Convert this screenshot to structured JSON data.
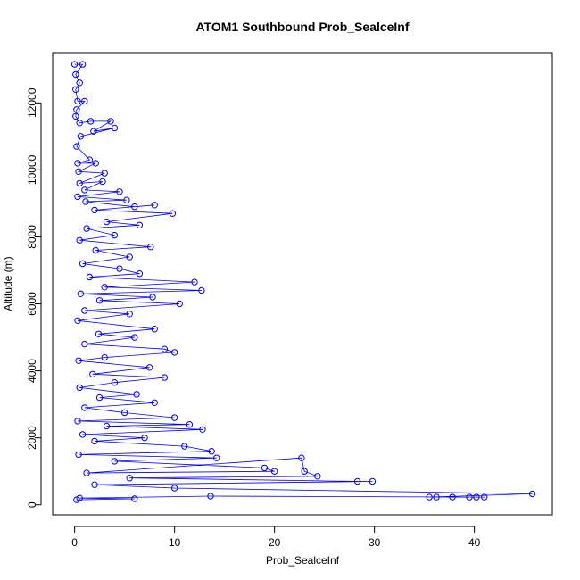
{
  "chart_data": {
    "type": "line",
    "title": "ATOM1 Southbound Prob_SealceInf",
    "xlabel": "Prob_SealceInf",
    "ylabel": "Altitude (m)",
    "xlim": [
      -2.2,
      47.8
    ],
    "ylim": [
      -300,
      13500
    ],
    "x_ticks": [
      0,
      10,
      20,
      30,
      40
    ],
    "x_tick_labels": [
      "0",
      "10",
      "20",
      "30",
      "40"
    ],
    "y_ticks": [
      0,
      2000,
      4000,
      6000,
      8000,
      10000,
      12000
    ],
    "y_tick_labels": [
      "0",
      "2000",
      "4000",
      "6000",
      "8000",
      "10000",
      "12000"
    ],
    "grid": false,
    "series_color": "#0000ff",
    "marker": "open-circle",
    "lines_connected": true,
    "series": [
      {
        "points": [
          [
            0,
            13150
          ],
          [
            0.8,
            13150
          ],
          [
            0.1,
            12850
          ],
          [
            0.5,
            12600
          ],
          [
            0.1,
            12400
          ],
          [
            0.3,
            12050
          ],
          [
            1.0,
            12050
          ],
          [
            0.2,
            11800
          ],
          [
            0.1,
            11600
          ],
          [
            0.5,
            11400
          ],
          [
            1.6,
            11450
          ],
          [
            3.6,
            11450
          ],
          [
            1.9,
            11150
          ],
          [
            4.0,
            11250
          ],
          [
            0.6,
            11000
          ],
          [
            0.2,
            10700
          ],
          [
            1.5,
            10300
          ],
          [
            0.3,
            10200
          ],
          [
            2.1,
            10200
          ],
          [
            0.4,
            9950
          ],
          [
            3.0,
            9900
          ],
          [
            0.5,
            9600
          ],
          [
            2.8,
            9650
          ],
          [
            1.0,
            9400
          ],
          [
            4.5,
            9350
          ],
          [
            0.3,
            9200
          ],
          [
            5.2,
            9100
          ],
          [
            1.1,
            9050
          ],
          [
            6.0,
            8900
          ],
          [
            8.0,
            8950
          ],
          [
            2.0,
            8800
          ],
          [
            9.8,
            8700
          ],
          [
            3.2,
            8450
          ],
          [
            6.5,
            8350
          ],
          [
            1.2,
            8250
          ],
          [
            4.0,
            8050
          ],
          [
            0.5,
            7900
          ],
          [
            7.6,
            7700
          ],
          [
            2.1,
            7600
          ],
          [
            5.5,
            7400
          ],
          [
            0.8,
            7200
          ],
          [
            4.5,
            7050
          ],
          [
            6.5,
            6900
          ],
          [
            1.5,
            6800
          ],
          [
            12.0,
            6650
          ],
          [
            3.0,
            6500
          ],
          [
            12.7,
            6400
          ],
          [
            0.6,
            6300
          ],
          [
            7.8,
            6200
          ],
          [
            2.5,
            6100
          ],
          [
            10.5,
            6000
          ],
          [
            1.0,
            5800
          ],
          [
            5.5,
            5700
          ],
          [
            0.3,
            5500
          ],
          [
            8.0,
            5250
          ],
          [
            2.4,
            5100
          ],
          [
            6.0,
            5000
          ],
          [
            1.0,
            4800
          ],
          [
            9.0,
            4650
          ],
          [
            10.0,
            4550
          ],
          [
            3.0,
            4400
          ],
          [
            0.4,
            4300
          ],
          [
            7.5,
            4100
          ],
          [
            1.8,
            3900
          ],
          [
            9.0,
            3800
          ],
          [
            4.0,
            3650
          ],
          [
            0.5,
            3500
          ],
          [
            6.2,
            3300
          ],
          [
            2.5,
            3200
          ],
          [
            8.0,
            3050
          ],
          [
            1.0,
            2900
          ],
          [
            5.0,
            2750
          ],
          [
            10.0,
            2600
          ],
          [
            0.3,
            2500
          ],
          [
            11.5,
            2400
          ],
          [
            3.2,
            2350
          ],
          [
            12.8,
            2250
          ],
          [
            0.8,
            2100
          ],
          [
            7.0,
            2000
          ],
          [
            2.0,
            1900
          ],
          [
            11.0,
            1750
          ],
          [
            13.7,
            1600
          ],
          [
            0.4,
            1500
          ],
          [
            14.2,
            1400
          ],
          [
            4.0,
            1300
          ],
          [
            19.0,
            1100
          ],
          [
            20.0,
            1000
          ],
          [
            1.2,
            950
          ],
          [
            22.7,
            1400
          ],
          [
            23.0,
            1000
          ],
          [
            24.3,
            850
          ],
          [
            5.5,
            800
          ],
          [
            28.3,
            700
          ],
          [
            29.8,
            700
          ],
          [
            2.0,
            600
          ],
          [
            10.0,
            500
          ],
          [
            45.8,
            330
          ],
          [
            35.5,
            230
          ],
          [
            36.2,
            230
          ],
          [
            37.8,
            230
          ],
          [
            39.5,
            230
          ],
          [
            40.2,
            230
          ],
          [
            41.0,
            230
          ],
          [
            13.6,
            260
          ],
          [
            0.5,
            200
          ],
          [
            6.0,
            180
          ],
          [
            0.2,
            150
          ]
        ]
      }
    ]
  }
}
